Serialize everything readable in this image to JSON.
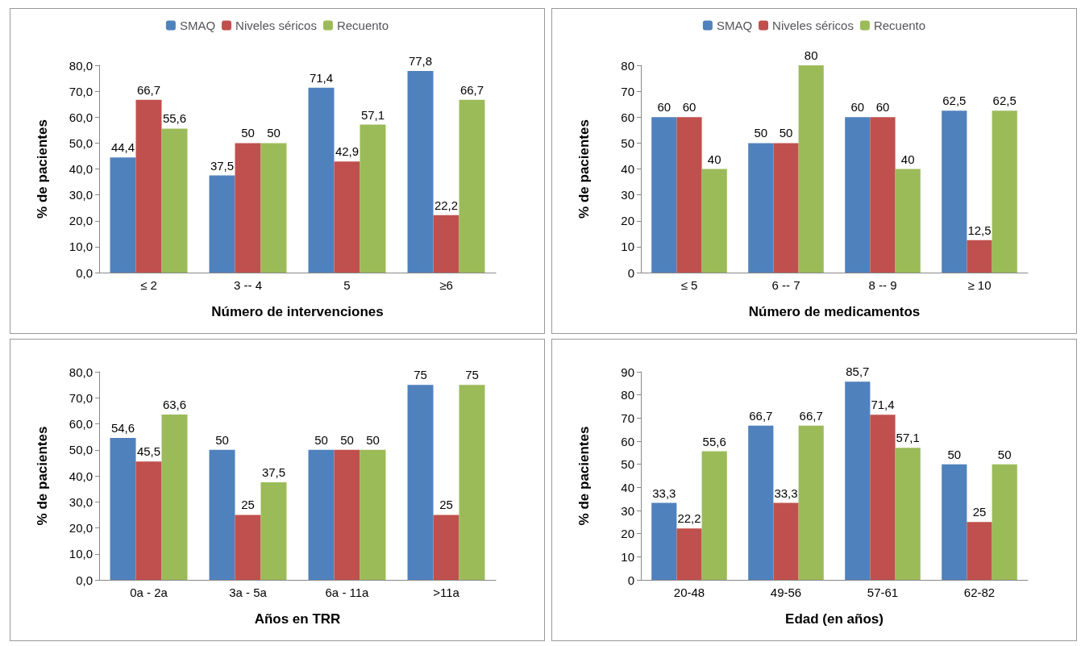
{
  "chart_data": [
    {
      "type": "bar",
      "xlabel": "Número de intervenciones",
      "ylabel": "% de pacientes",
      "categories": [
        "≤ 2",
        "3 -- 4",
        "5",
        "≥6"
      ],
      "legend": "top",
      "ylim": [
        0,
        80
      ],
      "yticks": [
        {
          "value": 0,
          "label": "0,0"
        },
        {
          "value": 10,
          "label": "10,0"
        },
        {
          "value": 20,
          "label": "20,0"
        },
        {
          "value": 30,
          "label": "30,0"
        },
        {
          "value": 40,
          "label": "40,0"
        },
        {
          "value": 50,
          "label": "50,0"
        },
        {
          "value": 60,
          "label": "60,0"
        },
        {
          "value": 70,
          "label": "70,0"
        },
        {
          "value": 80,
          "label": "80,0"
        }
      ],
      "series": [
        {
          "name": "SMAQ",
          "color": "#4f81bd",
          "values": [
            44.4,
            37.5,
            71.4,
            77.8
          ],
          "value_labels": [
            "44,4",
            "37,5",
            "71,4",
            "77,8"
          ]
        },
        {
          "name": "Niveles séricos",
          "color": "#c0504d",
          "values": [
            66.7,
            50,
            42.9,
            22.2
          ],
          "value_labels": [
            "66,7",
            "50",
            "42,9",
            "22,2"
          ]
        },
        {
          "name": "Recuento",
          "color": "#9bbb59",
          "values": [
            55.6,
            50,
            57.1,
            66.7
          ],
          "value_labels": [
            "55,6",
            "50",
            "57,1",
            "66,7"
          ]
        }
      ]
    },
    {
      "type": "bar",
      "xlabel": "Número de medicamentos",
      "ylabel": "% de pacientes",
      "categories": [
        "≤ 5",
        "6 -- 7",
        "8 -- 9",
        "≥ 10"
      ],
      "legend": "top",
      "ylim": [
        0,
        80
      ],
      "yticks": [
        0,
        10,
        20,
        30,
        40,
        50,
        60,
        70,
        80
      ],
      "series": [
        {
          "name": "SMAQ",
          "color": "#4f81bd",
          "values": [
            60,
            50,
            60,
            62.5
          ],
          "value_labels": [
            "60",
            "50",
            "60",
            "62,5"
          ]
        },
        {
          "name": "Niveles séricos",
          "color": "#c0504d",
          "values": [
            60,
            50,
            60,
            12.5
          ],
          "value_labels": [
            "60",
            "50",
            "60",
            "12,5"
          ]
        },
        {
          "name": "Recuento",
          "color": "#9bbb59",
          "values": [
            40,
            80,
            40,
            62.5
          ],
          "value_labels": [
            "40",
            "80",
            "40",
            "62,5"
          ]
        }
      ]
    },
    {
      "type": "bar",
      "xlabel": "Años en TRR",
      "ylabel": "% de pacientes",
      "categories": [
        "0a - 2a",
        "3a - 5a",
        "6a - 11a",
        ">11a"
      ],
      "ylim": [
        0,
        80
      ],
      "yticks": [
        {
          "value": 0,
          "label": "0,0"
        },
        {
          "value": 10,
          "label": "10,0"
        },
        {
          "value": 20,
          "label": "20,0"
        },
        {
          "value": 30,
          "label": "30,0"
        },
        {
          "value": 40,
          "label": "40,0"
        },
        {
          "value": 50,
          "label": "50,0"
        },
        {
          "value": 60,
          "label": "60,0"
        },
        {
          "value": 70,
          "label": "70,0"
        },
        {
          "value": 80,
          "label": "80,0"
        }
      ],
      "series": [
        {
          "color": "#4f81bd",
          "values": [
            54.6,
            50,
            50,
            75
          ],
          "value_labels": [
            "54,6",
            "50",
            "50",
            "75"
          ]
        },
        {
          "color": "#c0504d",
          "values": [
            45.5,
            25,
            50,
            25
          ],
          "value_labels": [
            "45,5",
            "25",
            "50",
            "25"
          ]
        },
        {
          "color": "#9bbb59",
          "values": [
            63.6,
            37.5,
            50,
            75
          ],
          "value_labels": [
            "63,6",
            "37,5",
            "50",
            "75"
          ]
        }
      ]
    },
    {
      "type": "bar",
      "xlabel": "Edad (en años)",
      "ylabel": "% de pacientes",
      "categories": [
        "20-48",
        "49-56",
        "57-61",
        "62-82"
      ],
      "ylim": [
        0,
        90
      ],
      "yticks": [
        0,
        10,
        20,
        30,
        40,
        50,
        60,
        70,
        80,
        90
      ],
      "series": [
        {
          "color": "#4f81bd",
          "values": [
            33.3,
            66.7,
            85.7,
            50
          ],
          "value_labels": [
            "33,3",
            "66,7",
            "85,7",
            "50"
          ]
        },
        {
          "color": "#c0504d",
          "values": [
            22.2,
            33.3,
            71.4,
            25
          ],
          "value_labels": [
            "22,2",
            "33,3",
            "71,4",
            "25"
          ]
        },
        {
          "color": "#9bbb59",
          "values": [
            55.6,
            66.7,
            57.1,
            50
          ],
          "value_labels": [
            "55,6",
            "66,7",
            "57,1",
            "50"
          ]
        }
      ]
    }
  ]
}
